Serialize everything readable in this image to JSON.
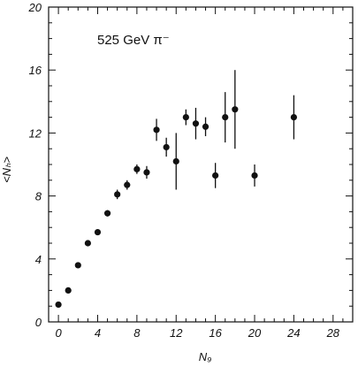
{
  "chart_data": {
    "type": "scatter",
    "annotation": "525 GeV  π⁻",
    "xlabel": "N₉",
    "ylabel": "<Nₕ>",
    "xlim": [
      -1,
      30
    ],
    "ylim": [
      0,
      20
    ],
    "xticks": [
      0,
      4,
      8,
      12,
      16,
      20,
      24,
      28
    ],
    "yticks": [
      0,
      4,
      8,
      12,
      16,
      20
    ],
    "grid": false,
    "legend": "none",
    "series": [
      {
        "points": [
          {
            "x": 0,
            "y": 1.1,
            "err": 0
          },
          {
            "x": 1,
            "y": 2.0,
            "err": 0
          },
          {
            "x": 2,
            "y": 3.6,
            "err": 0
          },
          {
            "x": 3,
            "y": 5.0,
            "err": 0
          },
          {
            "x": 4,
            "y": 5.7,
            "err": 0
          },
          {
            "x": 5,
            "y": 6.9,
            "err": 0.2
          },
          {
            "x": 6,
            "y": 8.1,
            "err": 0.3
          },
          {
            "x": 7,
            "y": 8.7,
            "err": 0.3
          },
          {
            "x": 8,
            "y": 9.7,
            "err": 0.3
          },
          {
            "x": 9,
            "y": 9.5,
            "err": 0.4
          },
          {
            "x": 10,
            "y": 12.2,
            "err": 0.7
          },
          {
            "x": 11,
            "y": 11.1,
            "err": 0.6
          },
          {
            "x": 12,
            "y": 10.2,
            "err": 1.8
          },
          {
            "x": 13,
            "y": 13.0,
            "err": 0.5
          },
          {
            "x": 14,
            "y": 12.6,
            "err": 1.0
          },
          {
            "x": 15,
            "y": 12.4,
            "err": 0.6
          },
          {
            "x": 16,
            "y": 9.3,
            "err": 0.8
          },
          {
            "x": 17,
            "y": 13.0,
            "err": 1.6
          },
          {
            "x": 18,
            "y": 13.5,
            "err": 2.5
          },
          {
            "x": 20,
            "y": 9.3,
            "err": 0.7
          },
          {
            "x": 24,
            "y": 13.0,
            "err": 1.4
          }
        ]
      }
    ]
  }
}
